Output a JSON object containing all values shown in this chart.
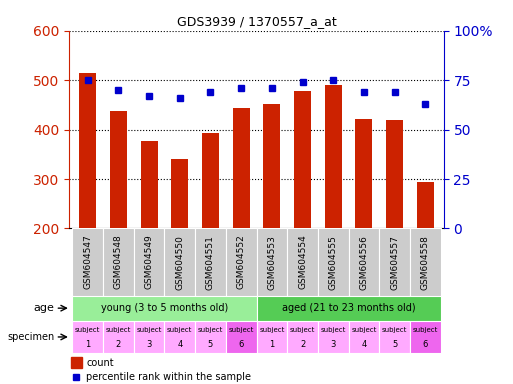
{
  "title": "GDS3939 / 1370557_a_at",
  "samples": [
    "GSM604547",
    "GSM604548",
    "GSM604549",
    "GSM604550",
    "GSM604551",
    "GSM604552",
    "GSM604553",
    "GSM604554",
    "GSM604555",
    "GSM604556",
    "GSM604557",
    "GSM604558"
  ],
  "counts": [
    515,
    438,
    376,
    340,
    393,
    444,
    451,
    478,
    491,
    421,
    419,
    295
  ],
  "percentile_ranks": [
    75,
    70,
    67,
    66,
    69,
    71,
    71,
    74,
    75,
    69,
    69,
    63
  ],
  "ylim_left": [
    200,
    600
  ],
  "ylim_right": [
    0,
    100
  ],
  "yticks_left": [
    200,
    300,
    400,
    500,
    600
  ],
  "yticks_right": [
    0,
    25,
    50,
    75,
    100
  ],
  "bar_color": "#cc2200",
  "dot_color": "#0000cc",
  "bar_bottom": 200,
  "age_groups": [
    {
      "label": "young (3 to 5 months old)",
      "start": 0,
      "end": 6,
      "color": "#99ee99"
    },
    {
      "label": "aged (21 to 23 months old)",
      "start": 6,
      "end": 12,
      "color": "#55cc55"
    }
  ],
  "specimen_colors_light": "#ffaaff",
  "specimen_colors_dark": "#ee66ee",
  "specimen_labels_top": [
    "subject",
    "subject",
    "subject",
    "subject",
    "subject",
    "subject",
    "subject",
    "subject",
    "subject",
    "subject",
    "subject",
    "subject"
  ],
  "specimen_labels_num": [
    "1",
    "2",
    "3",
    "4",
    "5",
    "6",
    "1",
    "2",
    "3",
    "4",
    "5",
    "6"
  ],
  "specimen_dark_indices": [
    5,
    11
  ],
  "legend_count_color": "#cc2200",
  "legend_dot_color": "#0000cc",
  "tick_color_left": "#cc2200",
  "tick_color_right": "#0000cc",
  "xtick_bg": "#cccccc",
  "spine_color": "#000000"
}
